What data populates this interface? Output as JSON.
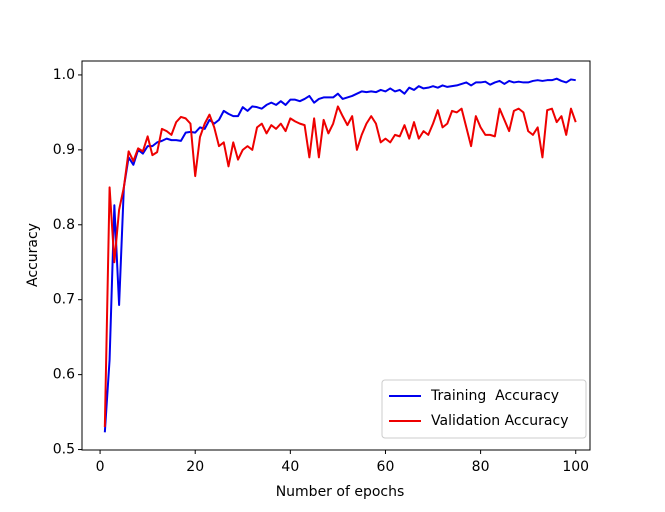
{
  "chart_data": {
    "type": "line",
    "x_label": "Number of epochs",
    "y_label": "Accuracy",
    "x": [
      1,
      2,
      3,
      4,
      5,
      6,
      7,
      8,
      9,
      10,
      11,
      12,
      13,
      14,
      15,
      16,
      17,
      18,
      19,
      20,
      21,
      22,
      23,
      24,
      25,
      26,
      27,
      28,
      29,
      30,
      31,
      32,
      33,
      34,
      35,
      36,
      37,
      38,
      39,
      40,
      41,
      42,
      43,
      44,
      45,
      46,
      47,
      48,
      49,
      50,
      51,
      52,
      53,
      54,
      55,
      56,
      57,
      58,
      59,
      60,
      61,
      62,
      63,
      64,
      65,
      66,
      67,
      68,
      69,
      70,
      71,
      72,
      73,
      74,
      75,
      76,
      77,
      78,
      79,
      80,
      81,
      82,
      83,
      84,
      85,
      86,
      87,
      88,
      89,
      90,
      91,
      92,
      93,
      94,
      95,
      96,
      97,
      98,
      99,
      100
    ],
    "series": [
      {
        "name": "Training  Accuracy",
        "color": "#0000ee",
        "values": [
          0.523,
          0.62,
          0.826,
          0.693,
          0.85,
          0.89,
          0.88,
          0.9,
          0.895,
          0.905,
          0.905,
          0.91,
          0.912,
          0.915,
          0.913,
          0.913,
          0.912,
          0.923,
          0.924,
          0.923,
          0.93,
          0.928,
          0.94,
          0.935,
          0.94,
          0.952,
          0.948,
          0.945,
          0.945,
          0.957,
          0.952,
          0.958,
          0.957,
          0.955,
          0.96,
          0.963,
          0.96,
          0.965,
          0.96,
          0.967,
          0.967,
          0.965,
          0.968,
          0.972,
          0.963,
          0.968,
          0.97,
          0.97,
          0.97,
          0.975,
          0.968,
          0.97,
          0.972,
          0.975,
          0.978,
          0.977,
          0.978,
          0.977,
          0.98,
          0.978,
          0.982,
          0.978,
          0.98,
          0.975,
          0.983,
          0.98,
          0.985,
          0.982,
          0.983,
          0.985,
          0.983,
          0.986,
          0.984,
          0.985,
          0.986,
          0.988,
          0.99,
          0.986,
          0.99,
          0.99,
          0.991,
          0.987,
          0.99,
          0.992,
          0.988,
          0.992,
          0.99,
          0.991,
          0.99,
          0.99,
          0.992,
          0.993,
          0.992,
          0.993,
          0.993,
          0.995,
          0.992,
          0.99,
          0.994,
          0.993
        ]
      },
      {
        "name": "Validation Accuracy",
        "color": "#ee0000",
        "values": [
          0.53,
          0.85,
          0.75,
          0.82,
          0.85,
          0.898,
          0.885,
          0.902,
          0.898,
          0.918,
          0.893,
          0.897,
          0.928,
          0.925,
          0.92,
          0.937,
          0.944,
          0.942,
          0.935,
          0.865,
          0.917,
          0.935,
          0.947,
          0.93,
          0.905,
          0.91,
          0.878,
          0.91,
          0.887,
          0.9,
          0.905,
          0.9,
          0.93,
          0.935,
          0.922,
          0.933,
          0.928,
          0.935,
          0.925,
          0.942,
          0.938,
          0.935,
          0.933,
          0.89,
          0.942,
          0.89,
          0.94,
          0.922,
          0.935,
          0.958,
          0.945,
          0.933,
          0.945,
          0.9,
          0.92,
          0.935,
          0.945,
          0.935,
          0.91,
          0.915,
          0.91,
          0.92,
          0.918,
          0.933,
          0.915,
          0.937,
          0.915,
          0.925,
          0.92,
          0.935,
          0.953,
          0.93,
          0.935,
          0.952,
          0.95,
          0.955,
          0.93,
          0.905,
          0.945,
          0.93,
          0.92,
          0.92,
          0.918,
          0.955,
          0.94,
          0.925,
          0.952,
          0.955,
          0.95,
          0.925,
          0.92,
          0.93,
          0.89,
          0.953,
          0.955,
          0.937,
          0.945,
          0.92,
          0.955,
          0.937
        ]
      }
    ],
    "xlim": [
      -3.8,
      103
    ],
    "xticks": [
      0,
      20,
      40,
      60,
      80,
      100
    ],
    "ylim": [
      0.4994,
      1.0186
    ],
    "yticks": [
      0.5,
      0.6,
      0.7,
      0.8,
      0.9,
      {
        "value": 1,
        "label": "1.0"
      }
    ],
    "legend": "lower right"
  }
}
